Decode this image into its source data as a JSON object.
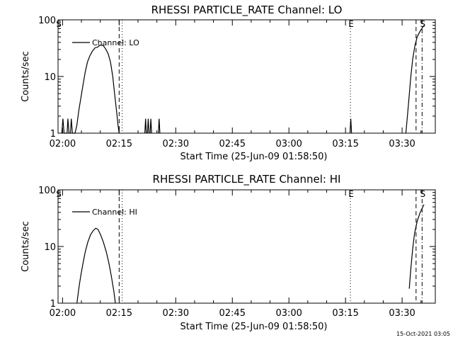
{
  "footer": {
    "timestamp": "15-Oct-2021 03:05"
  },
  "colors": {
    "background": "#ffffff",
    "ink": "#000000"
  },
  "chart_data": [
    {
      "type": "line",
      "title": "RHESSI PARTICLE_RATE Channel: LO",
      "xlabel": "Start Time (25-Jun-09 01:58:50)",
      "ylabel": "Counts/sec",
      "yscale": "log",
      "ylim": [
        1,
        100
      ],
      "xlim_min": [
        0,
        100
      ],
      "x_ticks": [
        {
          "min": 1.2,
          "label": "02:00"
        },
        {
          "min": 16.2,
          "label": "02:15"
        },
        {
          "min": 31.2,
          "label": "02:30"
        },
        {
          "min": 46.2,
          "label": "02:45"
        },
        {
          "min": 61.2,
          "label": "03:00"
        },
        {
          "min": 76.2,
          "label": "03:15"
        },
        {
          "min": 91.2,
          "label": "03:30"
        }
      ],
      "y_ticks": [
        {
          "value": 1,
          "label": "1"
        },
        {
          "value": 10,
          "label": "10"
        },
        {
          "value": 100,
          "label": "100"
        }
      ],
      "legend": {
        "label": "Channel: LO",
        "position": "top-left"
      },
      "markers": [
        {
          "min": 0.0,
          "label": "S",
          "style": "solid"
        },
        {
          "min": 16.2,
          "label": "",
          "style": "dashed"
        },
        {
          "min": 17.0,
          "label": "",
          "style": "dotted"
        },
        {
          "min": 77.5,
          "label": "E",
          "style": "dotted"
        },
        {
          "min": 94.9,
          "label": "",
          "style": "dashed"
        },
        {
          "min": 96.5,
          "label": "S",
          "style": "dashdot"
        }
      ],
      "series": [
        {
          "name": "Channel: LO",
          "points": [
            [
              1,
              1
            ],
            [
              1.3,
              1.8
            ],
            [
              1.6,
              1
            ],
            [
              2.4,
              1
            ],
            [
              2.6,
              1.8
            ],
            [
              2.9,
              1
            ],
            [
              3.3,
              1
            ],
            [
              3.5,
              1.8
            ],
            [
              3.8,
              1
            ],
            [
              4.5,
              1
            ],
            [
              5,
              1.4
            ],
            [
              5.5,
              2.5
            ],
            [
              6,
              4
            ],
            [
              6.6,
              7
            ],
            [
              7.2,
              12
            ],
            [
              7.8,
              18
            ],
            [
              8.4,
              23
            ],
            [
              9.1,
              28
            ],
            [
              9.8,
              32
            ],
            [
              10.5,
              33
            ],
            [
              11.2,
              36
            ],
            [
              12,
              35
            ],
            [
              12.7,
              30
            ],
            [
              13.3,
              25
            ],
            [
              13.9,
              18
            ],
            [
              14.5,
              10
            ],
            [
              15,
              5
            ],
            [
              15.5,
              2.5
            ],
            [
              15.9,
              1.4
            ],
            [
              16.2,
              1
            ]
          ]
        },
        {
          "name": "Channel: LO spike a",
          "points": [
            [
              23,
              1
            ],
            [
              23.2,
              1.8
            ],
            [
              23.4,
              1
            ]
          ]
        },
        {
          "name": "Channel: LO spike b",
          "points": [
            [
              23.7,
              1
            ],
            [
              23.9,
              1.8
            ],
            [
              24.1,
              1
            ]
          ]
        },
        {
          "name": "Channel: LO spike c",
          "points": [
            [
              24.4,
              1
            ],
            [
              24.6,
              1.8
            ],
            [
              24.8,
              1
            ]
          ]
        },
        {
          "name": "Channel: LO spike d",
          "points": [
            [
              26.6,
              1
            ],
            [
              26.8,
              1.8
            ],
            [
              27,
              1
            ]
          ]
        },
        {
          "name": "Channel: LO spike e",
          "points": [
            [
              77.4,
              1
            ],
            [
              77.6,
              1.8
            ],
            [
              77.8,
              1
            ]
          ]
        },
        {
          "name": "Channel: LO rise",
          "points": [
            [
              92.2,
              1
            ],
            [
              92.6,
              2
            ],
            [
              93,
              4
            ],
            [
              93.5,
              10
            ],
            [
              94,
              20
            ],
            [
              94.6,
              35
            ],
            [
              95.2,
              50
            ],
            [
              95.8,
              60
            ],
            [
              96.4,
              70
            ],
            [
              97,
              80
            ]
          ]
        }
      ]
    },
    {
      "type": "line",
      "title": "RHESSI PARTICLE_RATE Channel: HI",
      "xlabel": "Start Time (25-Jun-09 01:58:50)",
      "ylabel": "Counts/sec",
      "yscale": "log",
      "ylim": [
        1,
        100
      ],
      "xlim_min": [
        0,
        100
      ],
      "x_ticks": [
        {
          "min": 1.2,
          "label": "02:00"
        },
        {
          "min": 16.2,
          "label": "02:15"
        },
        {
          "min": 31.2,
          "label": "02:30"
        },
        {
          "min": 46.2,
          "label": "02:45"
        },
        {
          "min": 61.2,
          "label": "03:00"
        },
        {
          "min": 76.2,
          "label": "03:15"
        },
        {
          "min": 91.2,
          "label": "03:30"
        }
      ],
      "y_ticks": [
        {
          "value": 1,
          "label": "1"
        },
        {
          "value": 10,
          "label": "10"
        },
        {
          "value": 100,
          "label": "100"
        }
      ],
      "legend": {
        "label": "Channel: HI",
        "position": "top-left"
      },
      "markers": [
        {
          "min": 0.0,
          "label": "S",
          "style": "solid"
        },
        {
          "min": 16.2,
          "label": "",
          "style": "dashed"
        },
        {
          "min": 17.0,
          "label": "",
          "style": "dotted"
        },
        {
          "min": 77.5,
          "label": "E",
          "style": "dotted"
        },
        {
          "min": 94.9,
          "label": "",
          "style": "dashed"
        },
        {
          "min": 96.5,
          "label": "S",
          "style": "dashdot"
        }
      ],
      "series": [
        {
          "name": "Channel: HI",
          "points": [
            [
              5,
              1
            ],
            [
              5.5,
              1.8
            ],
            [
              6,
              3
            ],
            [
              6.6,
              5
            ],
            [
              7.2,
              8
            ],
            [
              7.9,
              12
            ],
            [
              8.6,
              16
            ],
            [
              9.3,
              19
            ],
            [
              10,
              21
            ],
            [
              10.6,
              20
            ],
            [
              11.3,
              16
            ],
            [
              12,
              12
            ],
            [
              12.8,
              8
            ],
            [
              13.5,
              5
            ],
            [
              14.2,
              2.8
            ],
            [
              14.8,
              1.6
            ],
            [
              15.2,
              1
            ]
          ]
        },
        {
          "name": "Channel: HI rise",
          "points": [
            [
              93.1,
              1.8
            ],
            [
              93.5,
              4
            ],
            [
              94,
              9
            ],
            [
              94.5,
              17
            ],
            [
              95.2,
              28
            ],
            [
              96,
              40
            ],
            [
              97,
              55
            ]
          ]
        }
      ]
    }
  ]
}
